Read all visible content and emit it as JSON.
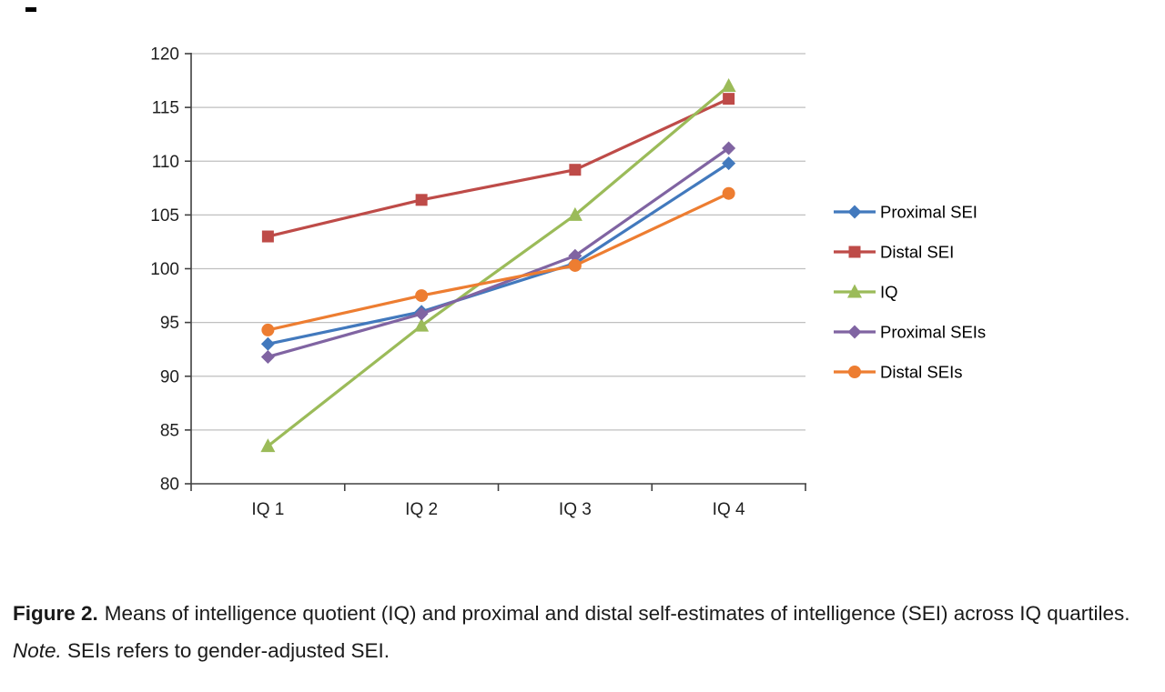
{
  "chart_data": {
    "type": "line",
    "categories": [
      "IQ 1",
      "IQ 2",
      "IQ 3",
      "IQ 4"
    ],
    "series": [
      {
        "name": "Proximal SEI",
        "color": "#4279BD",
        "marker": "diamond",
        "values": [
          93.0,
          96.0,
          100.5,
          109.8
        ]
      },
      {
        "name": "Distal SEI",
        "color": "#BE4B48",
        "marker": "square",
        "values": [
          103.0,
          106.4,
          109.2,
          115.8
        ]
      },
      {
        "name": "IQ",
        "color": "#9BBB59",
        "marker": "triangle",
        "values": [
          83.5,
          94.7,
          105.0,
          117.0
        ]
      },
      {
        "name": "Proximal SEIs",
        "color": "#8064A2",
        "marker": "diamond",
        "values": [
          91.8,
          95.8,
          101.2,
          111.2
        ]
      },
      {
        "name": "Distal SEIs",
        "color": "#ED7D31",
        "marker": "circle",
        "values": [
          94.3,
          97.5,
          100.3,
          107.0
        ]
      }
    ],
    "title": "",
    "xlabel": "",
    "ylabel": "",
    "ylim": [
      80,
      120
    ],
    "ytick_step": 5,
    "grid": "horizontal",
    "legend_position": "right",
    "colors": {
      "gridline": "#BFBFBF",
      "axis": "#404040",
      "tick_text": "#1f1f1f",
      "legend_text": "#000000"
    }
  },
  "caption": {
    "label": "Figure 2.",
    "text": "Means of intelligence quotient (IQ) and proximal and distal self-estimates of intelligence (SEI) across IQ quartiles.",
    "note_label": "Note.",
    "note_text": "SEIs refers to gender-adjusted SEI."
  }
}
